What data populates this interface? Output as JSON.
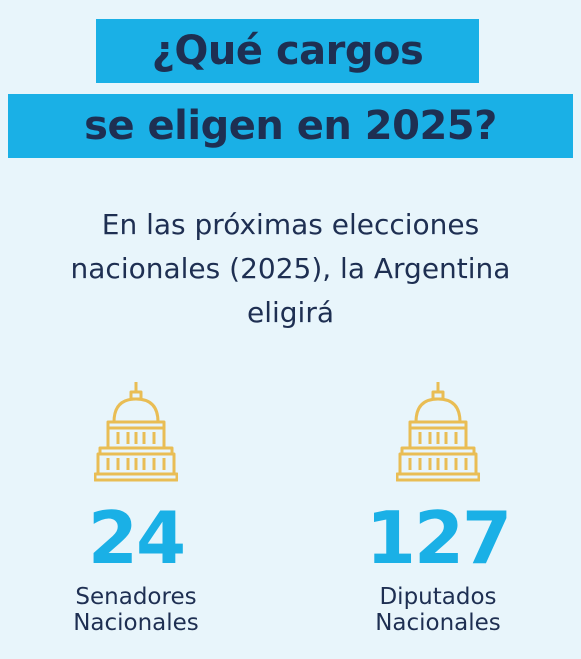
{
  "title": {
    "line1": "¿Qué cargos",
    "line2": "se eligen en 2025?"
  },
  "subtitle": {
    "line1": "En las próximas elecciones",
    "line2": "nacionales (2025), la Argentina",
    "line3": "eligirá"
  },
  "stats": [
    {
      "icon": "capitol-icon",
      "value": "24",
      "label_line1": "Senadores",
      "label_line2": "Nacionales"
    },
    {
      "icon": "capitol-icon",
      "value": "127",
      "label_line1": "Diputados",
      "label_line2": "Nacionales"
    }
  ],
  "colors": {
    "background": "#e8f5fb",
    "accent": "#1ab0e6",
    "text": "#1e2f52",
    "icon": "#e9bd54"
  }
}
